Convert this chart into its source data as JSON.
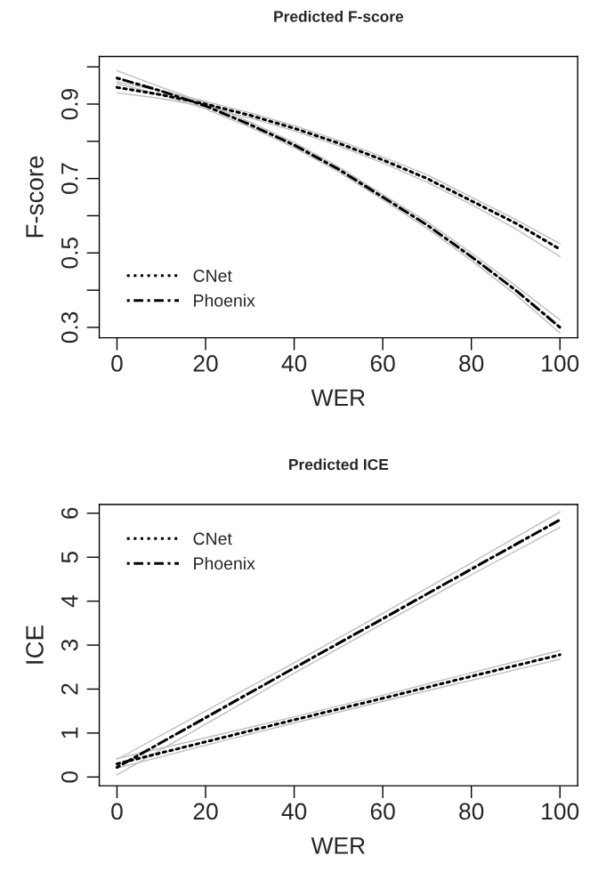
{
  "chart_data": [
    {
      "type": "line",
      "title": "Predicted F-score",
      "xlabel": "WER",
      "ylabel": "F-score",
      "x": [
        0,
        10,
        20,
        30,
        40,
        50,
        60,
        70,
        80,
        90,
        100
      ],
      "xlim": [
        -4,
        104
      ],
      "xticks": [
        0,
        20,
        40,
        60,
        80,
        100
      ],
      "ylim": [
        0.272,
        1.028
      ],
      "yticks": [
        0.3,
        {
          "value": 0.4,
          "label": null
        },
        0.5,
        {
          "value": 0.6,
          "label": null
        },
        0.7,
        {
          "value": 0.8,
          "label": null
        },
        0.9,
        {
          "value": 1.0,
          "label": null
        }
      ],
      "grid": false,
      "legend": "bottom left",
      "series": [
        {
          "color": "#bebebe",
          "line_style": "solid",
          "values": [
            0.93,
            0.915,
            0.893,
            0.863,
            0.828,
            0.788,
            0.742,
            0.69,
            0.63,
            0.565,
            0.49
          ]
        },
        {
          "color": "#bebebe",
          "line_style": "solid",
          "values": [
            0.96,
            0.935,
            0.907,
            0.877,
            0.842,
            0.802,
            0.758,
            0.71,
            0.65,
            0.59,
            0.525
          ]
        },
        {
          "color": "#bebebe",
          "line_style": "solid",
          "values": [
            0.955,
            0.925,
            0.887,
            0.838,
            0.783,
            0.718,
            0.643,
            0.566,
            0.48,
            0.388,
            0.285
          ]
        },
        {
          "color": "#bebebe",
          "line_style": "solid",
          "values": [
            0.99,
            0.945,
            0.903,
            0.852,
            0.797,
            0.732,
            0.657,
            0.584,
            0.5,
            0.412,
            0.32
          ]
        },
        {
          "name": "CNet",
          "color": "#000000",
          "line_style": "dotted",
          "values": [
            0.945,
            0.925,
            0.9,
            0.87,
            0.835,
            0.795,
            0.75,
            0.7,
            0.64,
            0.58,
            0.51
          ]
        },
        {
          "name": "Phoenix",
          "color": "#000000",
          "line_style": "dashdot",
          "values": [
            0.97,
            0.935,
            0.895,
            0.845,
            0.79,
            0.725,
            0.65,
            0.575,
            0.49,
            0.4,
            0.3
          ]
        }
      ]
    },
    {
      "type": "line",
      "title": "Predicted ICE",
      "xlabel": "WER",
      "ylabel": "ICE",
      "x": [
        0,
        20,
        40,
        60,
        80,
        100
      ],
      "xlim": [
        -4,
        104
      ],
      "xticks": [
        0,
        20,
        40,
        60,
        80,
        100
      ],
      "ylim": [
        -0.2,
        6.2
      ],
      "yticks": [
        0,
        1,
        2,
        3,
        4,
        5,
        6
      ],
      "grid": false,
      "legend": "top left",
      "series": [
        {
          "color": "#bebebe",
          "line_style": "solid",
          "values": [
            0.2,
            0.72,
            1.23,
            1.72,
            2.2,
            2.68
          ]
        },
        {
          "color": "#bebebe",
          "line_style": "solid",
          "values": [
            0.42,
            0.89,
            1.37,
            1.86,
            2.37,
            2.88
          ]
        },
        {
          "color": "#bebebe",
          "line_style": "solid",
          "values": [
            0.05,
            1.2,
            2.36,
            3.49,
            4.6,
            5.68
          ]
        },
        {
          "color": "#bebebe",
          "line_style": "solid",
          "values": [
            0.4,
            1.5,
            2.6,
            3.72,
            4.87,
            6.03
          ]
        },
        {
          "name": "CNet",
          "color": "#000000",
          "line_style": "dotted",
          "values": [
            0.3,
            0.8,
            1.3,
            1.79,
            2.29,
            2.78
          ]
        },
        {
          "name": "Phoenix",
          "color": "#000000",
          "line_style": "dashdot",
          "values": [
            0.22,
            1.35,
            2.48,
            3.6,
            4.73,
            5.85
          ]
        }
      ]
    }
  ]
}
